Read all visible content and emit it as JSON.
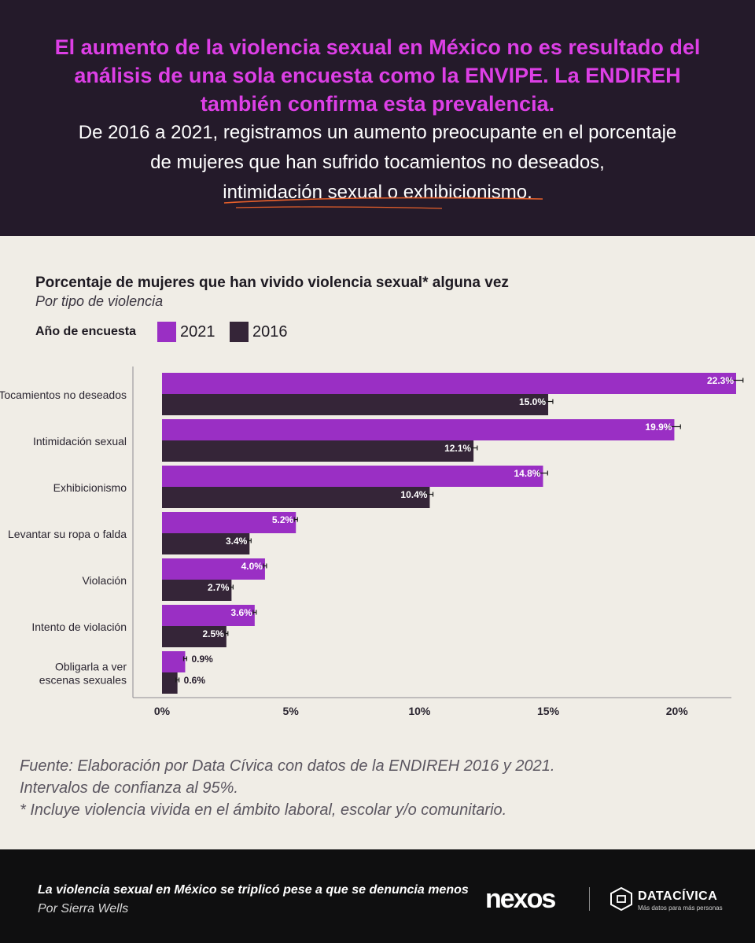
{
  "header": {
    "lead": "El aumento de la violencia sexual en México no es resultado del análisis de una sola encuesta como la ENVIPE. La ENDIREH también confirma esta prevalencia.",
    "sub_line1": "De 2016 a 2021, registramos un aumento preocupante en el porcentaje",
    "sub_line2": "de mujeres que han sufrido tocamientos no deseados,",
    "sub_line3": "intimidación sexual o exhibicionismo."
  },
  "colors": {
    "header_bg": "#241a2a",
    "accent_magenta": "#dd3fe6",
    "bar_2021": "#9a2fc4",
    "bar_2016": "#352538",
    "page_bg": "#f0ede6",
    "underline": "#e8602a"
  },
  "legend": {
    "title": "Año de encuesta",
    "label_2021": "2021",
    "label_2016": "2016"
  },
  "chart_data": {
    "type": "bar",
    "orientation": "horizontal",
    "title": "Porcentaje de mujeres que han vivido violencia sexual* alguna vez",
    "subtitle": "Por tipo de violencia",
    "categories": [
      "Tocamientos no deseados",
      "Intimidación sexual",
      "Exhibicionismo",
      "Levantar su ropa o falda",
      "Violación",
      "Intento de violación",
      "Obligarla a ver escenas sexuales"
    ],
    "series": [
      {
        "name": "2021",
        "values": [
          22.3,
          19.9,
          14.8,
          5.2,
          4.0,
          3.6,
          0.9
        ],
        "labels": [
          "22.3%",
          "19.9%",
          "14.8%",
          "5.2%",
          "4.0%",
          "3.6%",
          "0.9%"
        ]
      },
      {
        "name": "2016",
        "values": [
          15.0,
          12.1,
          10.4,
          3.4,
          2.7,
          2.5,
          0.6
        ],
        "labels": [
          "15.0%",
          "12.1%",
          "10.4%",
          "3.4%",
          "2.7%",
          "2.5%",
          "0.6%"
        ]
      }
    ],
    "xlim": [
      0,
      22.3
    ],
    "xticks": [
      "0%",
      "5%",
      "10%",
      "15%",
      "20%"
    ],
    "xtick_values": [
      0,
      5,
      10,
      15,
      20
    ],
    "error_bars": "95% confidence intervals"
  },
  "notes": {
    "line1": "Fuente: Elaboración por Data Cívica con datos de la ENDIREH 2016 y 2021.",
    "line2": "Intervalos de confianza al 95%.",
    "line3": "* Incluye violencia vivida en el ámbito laboral, escolar y/o comunitario."
  },
  "footer": {
    "story": "La violencia sexual en México se triplicó pese a que se denuncia menos",
    "byline": "Por Sierra Wells",
    "nexos": "nexos",
    "datacivica": "DATACÍVICA",
    "datacivica_tagline": "Más datos para más personas"
  }
}
